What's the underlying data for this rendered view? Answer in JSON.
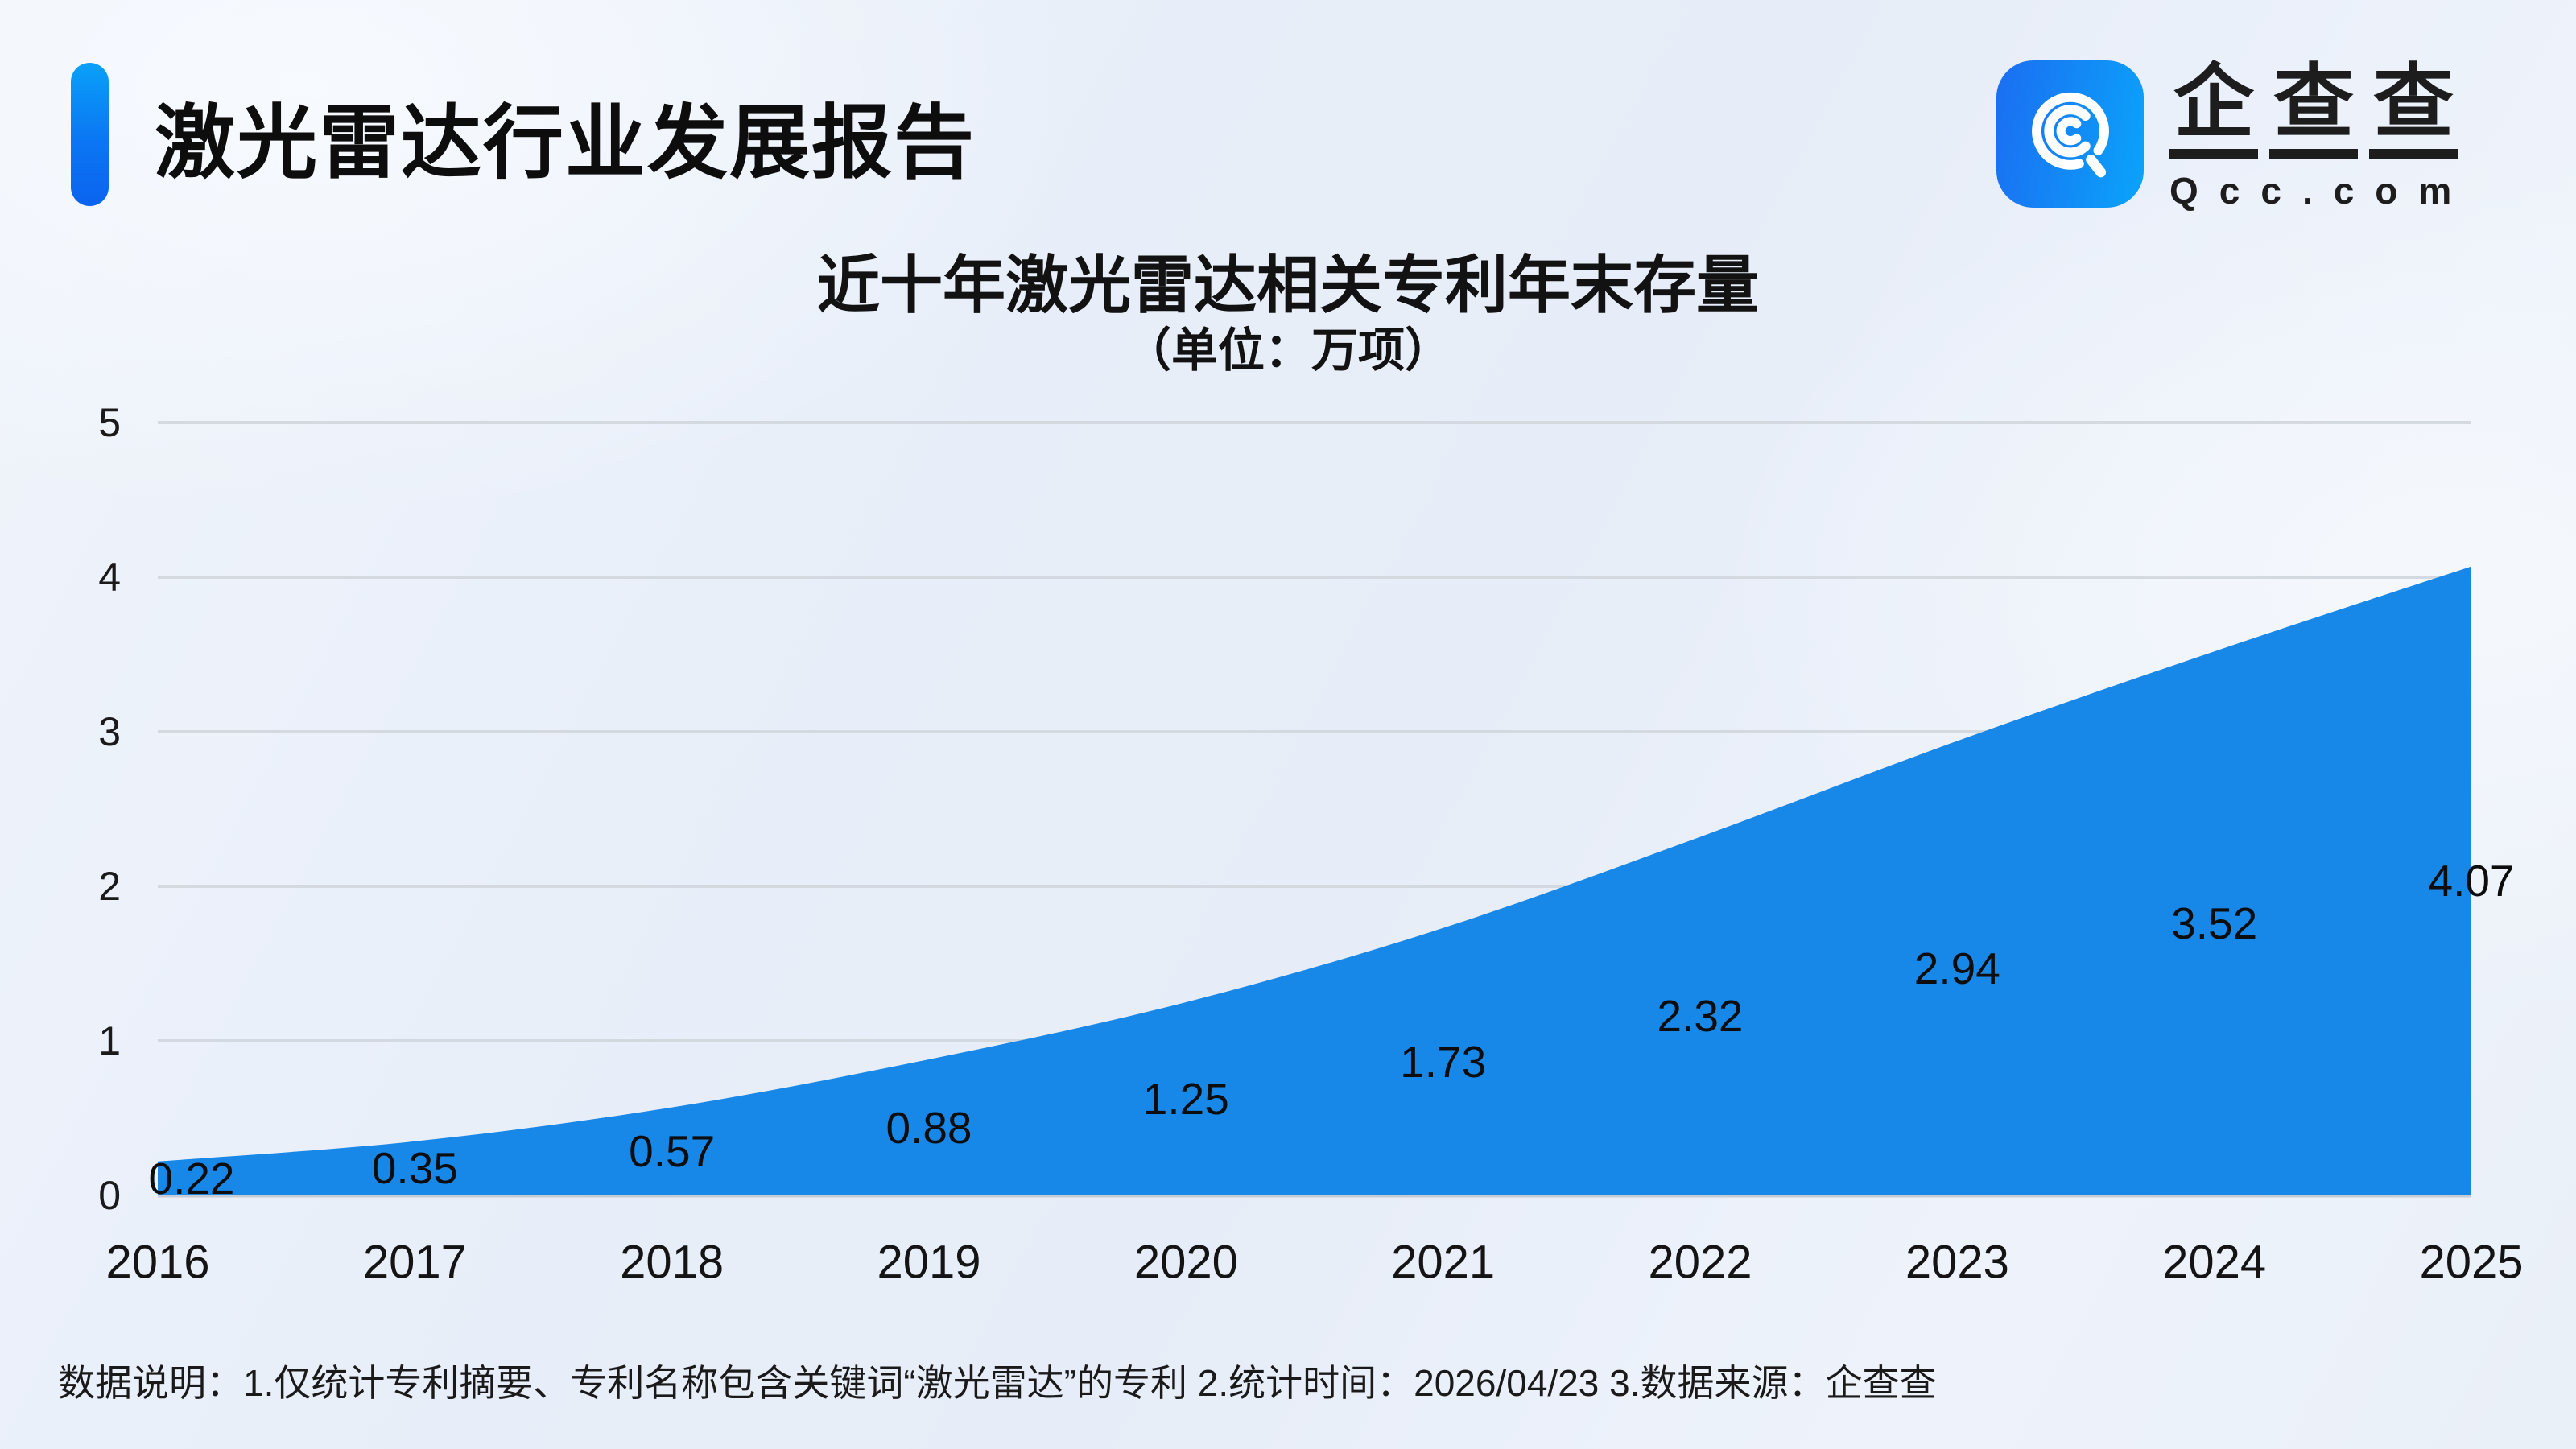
{
  "header": {
    "title": "激光雷达行业发展报告"
  },
  "logo": {
    "cn_chars": [
      "企",
      "查",
      "查"
    ],
    "en": "Qcc.com",
    "icon": "magnifier-q-icon",
    "icon_gradient": [
      "#1b6ef2",
      "#0aa4fb"
    ]
  },
  "chart": {
    "title": "近十年激光雷达相关专利年末存量",
    "subtitle": "（单位：万项）"
  },
  "chart_data": {
    "type": "area",
    "title": "近十年激光雷达相关专利年末存量",
    "subtitle": "（单位：万项）",
    "unit": "万项",
    "categories": [
      "2016",
      "2017",
      "2018",
      "2019",
      "2020",
      "2021",
      "2022",
      "2023",
      "2024",
      "2025"
    ],
    "values": [
      0.22,
      0.35,
      0.57,
      0.88,
      1.25,
      1.73,
      2.32,
      2.94,
      3.52,
      4.07
    ],
    "data_labels": [
      "0.22",
      "0.35",
      "0.57",
      "0.88",
      "1.25",
      "1.73",
      "2.32",
      "2.94",
      "3.52",
      "4.07"
    ],
    "xlabel": "",
    "ylabel": "",
    "ylim": [
      0,
      5
    ],
    "y_ticks": [
      "0",
      "1",
      "2",
      "3",
      "4",
      "5"
    ],
    "grid": true,
    "smooth": true,
    "legend_position": "none",
    "area_color": "#1787e8",
    "gridline_color": "#d4d8df",
    "baseline_color": "#c7cbd3",
    "label_color": "#0d0d0d"
  },
  "footer": {
    "note": "数据说明：1.仅统计专利摘要、专利名称包含关键词“激光雷达”的专利  2.统计时间：2026/04/23   3.数据来源：企查查"
  }
}
